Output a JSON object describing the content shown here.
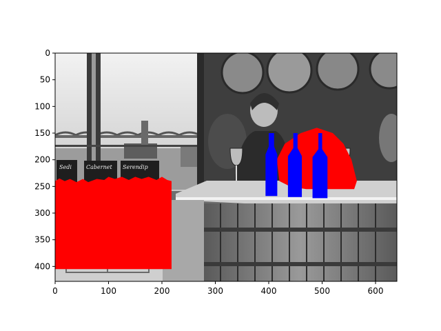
{
  "chart_data": {
    "type": "image",
    "title": "",
    "xlabel": "",
    "ylabel": "",
    "xlim": [
      0,
      640
    ],
    "ylim": [
      428,
      0
    ],
    "x_ticks": [
      0,
      100,
      200,
      300,
      400,
      500,
      600
    ],
    "y_ticks": [
      0,
      50,
      100,
      150,
      200,
      250,
      300,
      350,
      400
    ],
    "grid": false,
    "image_content": "grayscale photo: two people behind a wine tasting bar with barrels; left side window with bridge, wine boxes",
    "overlays": [
      {
        "name": "segmentation-red",
        "color": "#ff0000",
        "regions": [
          {
            "label": "person-right",
            "polygon": [
              [
                430,
                170
              ],
              [
                460,
                150
              ],
              [
                490,
                140
              ],
              [
                520,
                150
              ],
              [
                540,
                170
              ],
              [
                555,
                200
              ],
              [
                565,
                240
              ],
              [
                560,
                255
              ],
              [
                520,
                255
              ],
              [
                470,
                255
              ],
              [
                440,
                250
              ],
              [
                420,
                240
              ],
              [
                415,
                200
              ]
            ]
          },
          {
            "label": "wine-boxes-left",
            "polygon": [
              [
                0,
                240
              ],
              [
                8,
                235
              ],
              [
                18,
                240
              ],
              [
                28,
                236
              ],
              [
                40,
                242
              ],
              [
                52,
                236
              ],
              [
                62,
                242
              ],
              [
                78,
                236
              ],
              [
                92,
                238
              ],
              [
                100,
                232
              ],
              [
                112,
                236
              ],
              [
                125,
                232
              ],
              [
                138,
                238
              ],
              [
                150,
                232
              ],
              [
                162,
                236
              ],
              [
                175,
                232
              ],
              [
                190,
                238
              ],
              [
                200,
                232
              ],
              [
                210,
                238
              ],
              [
                218,
                240
              ],
              [
                218,
                405
              ],
              [
                0,
                405
              ]
            ]
          }
        ]
      },
      {
        "name": "segmentation-blue",
        "color": "#0000ff",
        "regions": [
          {
            "label": "bottle-1",
            "polygon": [
              [
                400,
                150
              ],
              [
                410,
                150
              ],
              [
                410,
                175
              ],
              [
                416,
                190
              ],
              [
                416,
                268
              ],
              [
                394,
                268
              ],
              [
                394,
                190
              ],
              [
                400,
                175
              ]
            ]
          },
          {
            "label": "bottle-2",
            "polygon": [
              [
                446,
                150
              ],
              [
                454,
                150
              ],
              [
                454,
                178
              ],
              [
                462,
                193
              ],
              [
                462,
                270
              ],
              [
                436,
                270
              ],
              [
                436,
                193
              ],
              [
                446,
                178
              ]
            ]
          },
          {
            "label": "bottle-3",
            "polygon": [
              [
                493,
                150
              ],
              [
                500,
                150
              ],
              [
                500,
                180
              ],
              [
                510,
                195
              ],
              [
                510,
                272
              ],
              [
                482,
                272
              ],
              [
                482,
                195
              ],
              [
                493,
                180
              ]
            ]
          }
        ]
      }
    ]
  }
}
